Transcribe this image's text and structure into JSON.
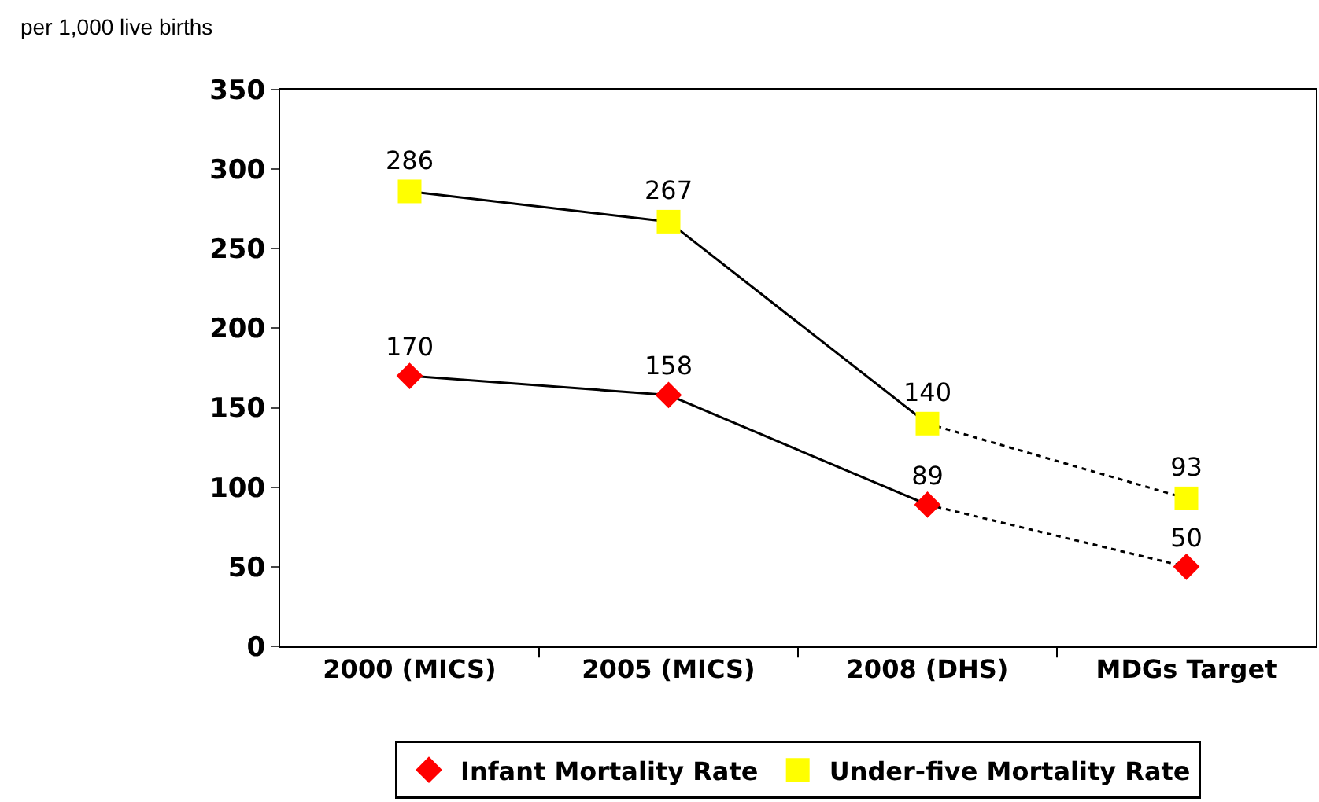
{
  "chart_data": {
    "type": "line",
    "ylabel": "per 1,000 live births",
    "categories": [
      "2000 (MICS)",
      "2005 (MICS)",
      "2008 (DHS)",
      "MDGs Target"
    ],
    "ylim": [
      0,
      350
    ],
    "yticks": [
      0,
      50,
      100,
      150,
      200,
      250,
      300,
      350
    ],
    "grid": false,
    "legend": "bottom",
    "series": [
      {
        "color": "#000000",
        "marker": "none",
        "line_style": "solid",
        "values": [
          286,
          267,
          140,
          null
        ]
      },
      {
        "color": "#000000",
        "marker": "none",
        "line_style": "dotted",
        "values": [
          null,
          null,
          140,
          93
        ]
      },
      {
        "color": "#000000",
        "marker": "none",
        "line_style": "solid",
        "values": [
          170,
          158,
          89,
          null
        ]
      },
      {
        "color": "#000000",
        "marker": "none",
        "line_style": "dotted",
        "values": [
          null,
          null,
          89,
          50
        ]
      },
      {
        "type": "scatter",
        "name": "Infant Mortality Rate",
        "color": "#ff0000",
        "marker": "diamond",
        "values": [
          170,
          158,
          89,
          50
        ],
        "value_labels": [
          "170",
          "158",
          "89",
          "50"
        ]
      },
      {
        "type": "scatter",
        "name": "Under-five Mortality Rate",
        "color": "#ffff00",
        "marker": "square",
        "values": [
          286,
          267,
          140,
          93
        ],
        "value_labels": [
          "286",
          "267",
          "140",
          "93"
        ]
      }
    ]
  }
}
